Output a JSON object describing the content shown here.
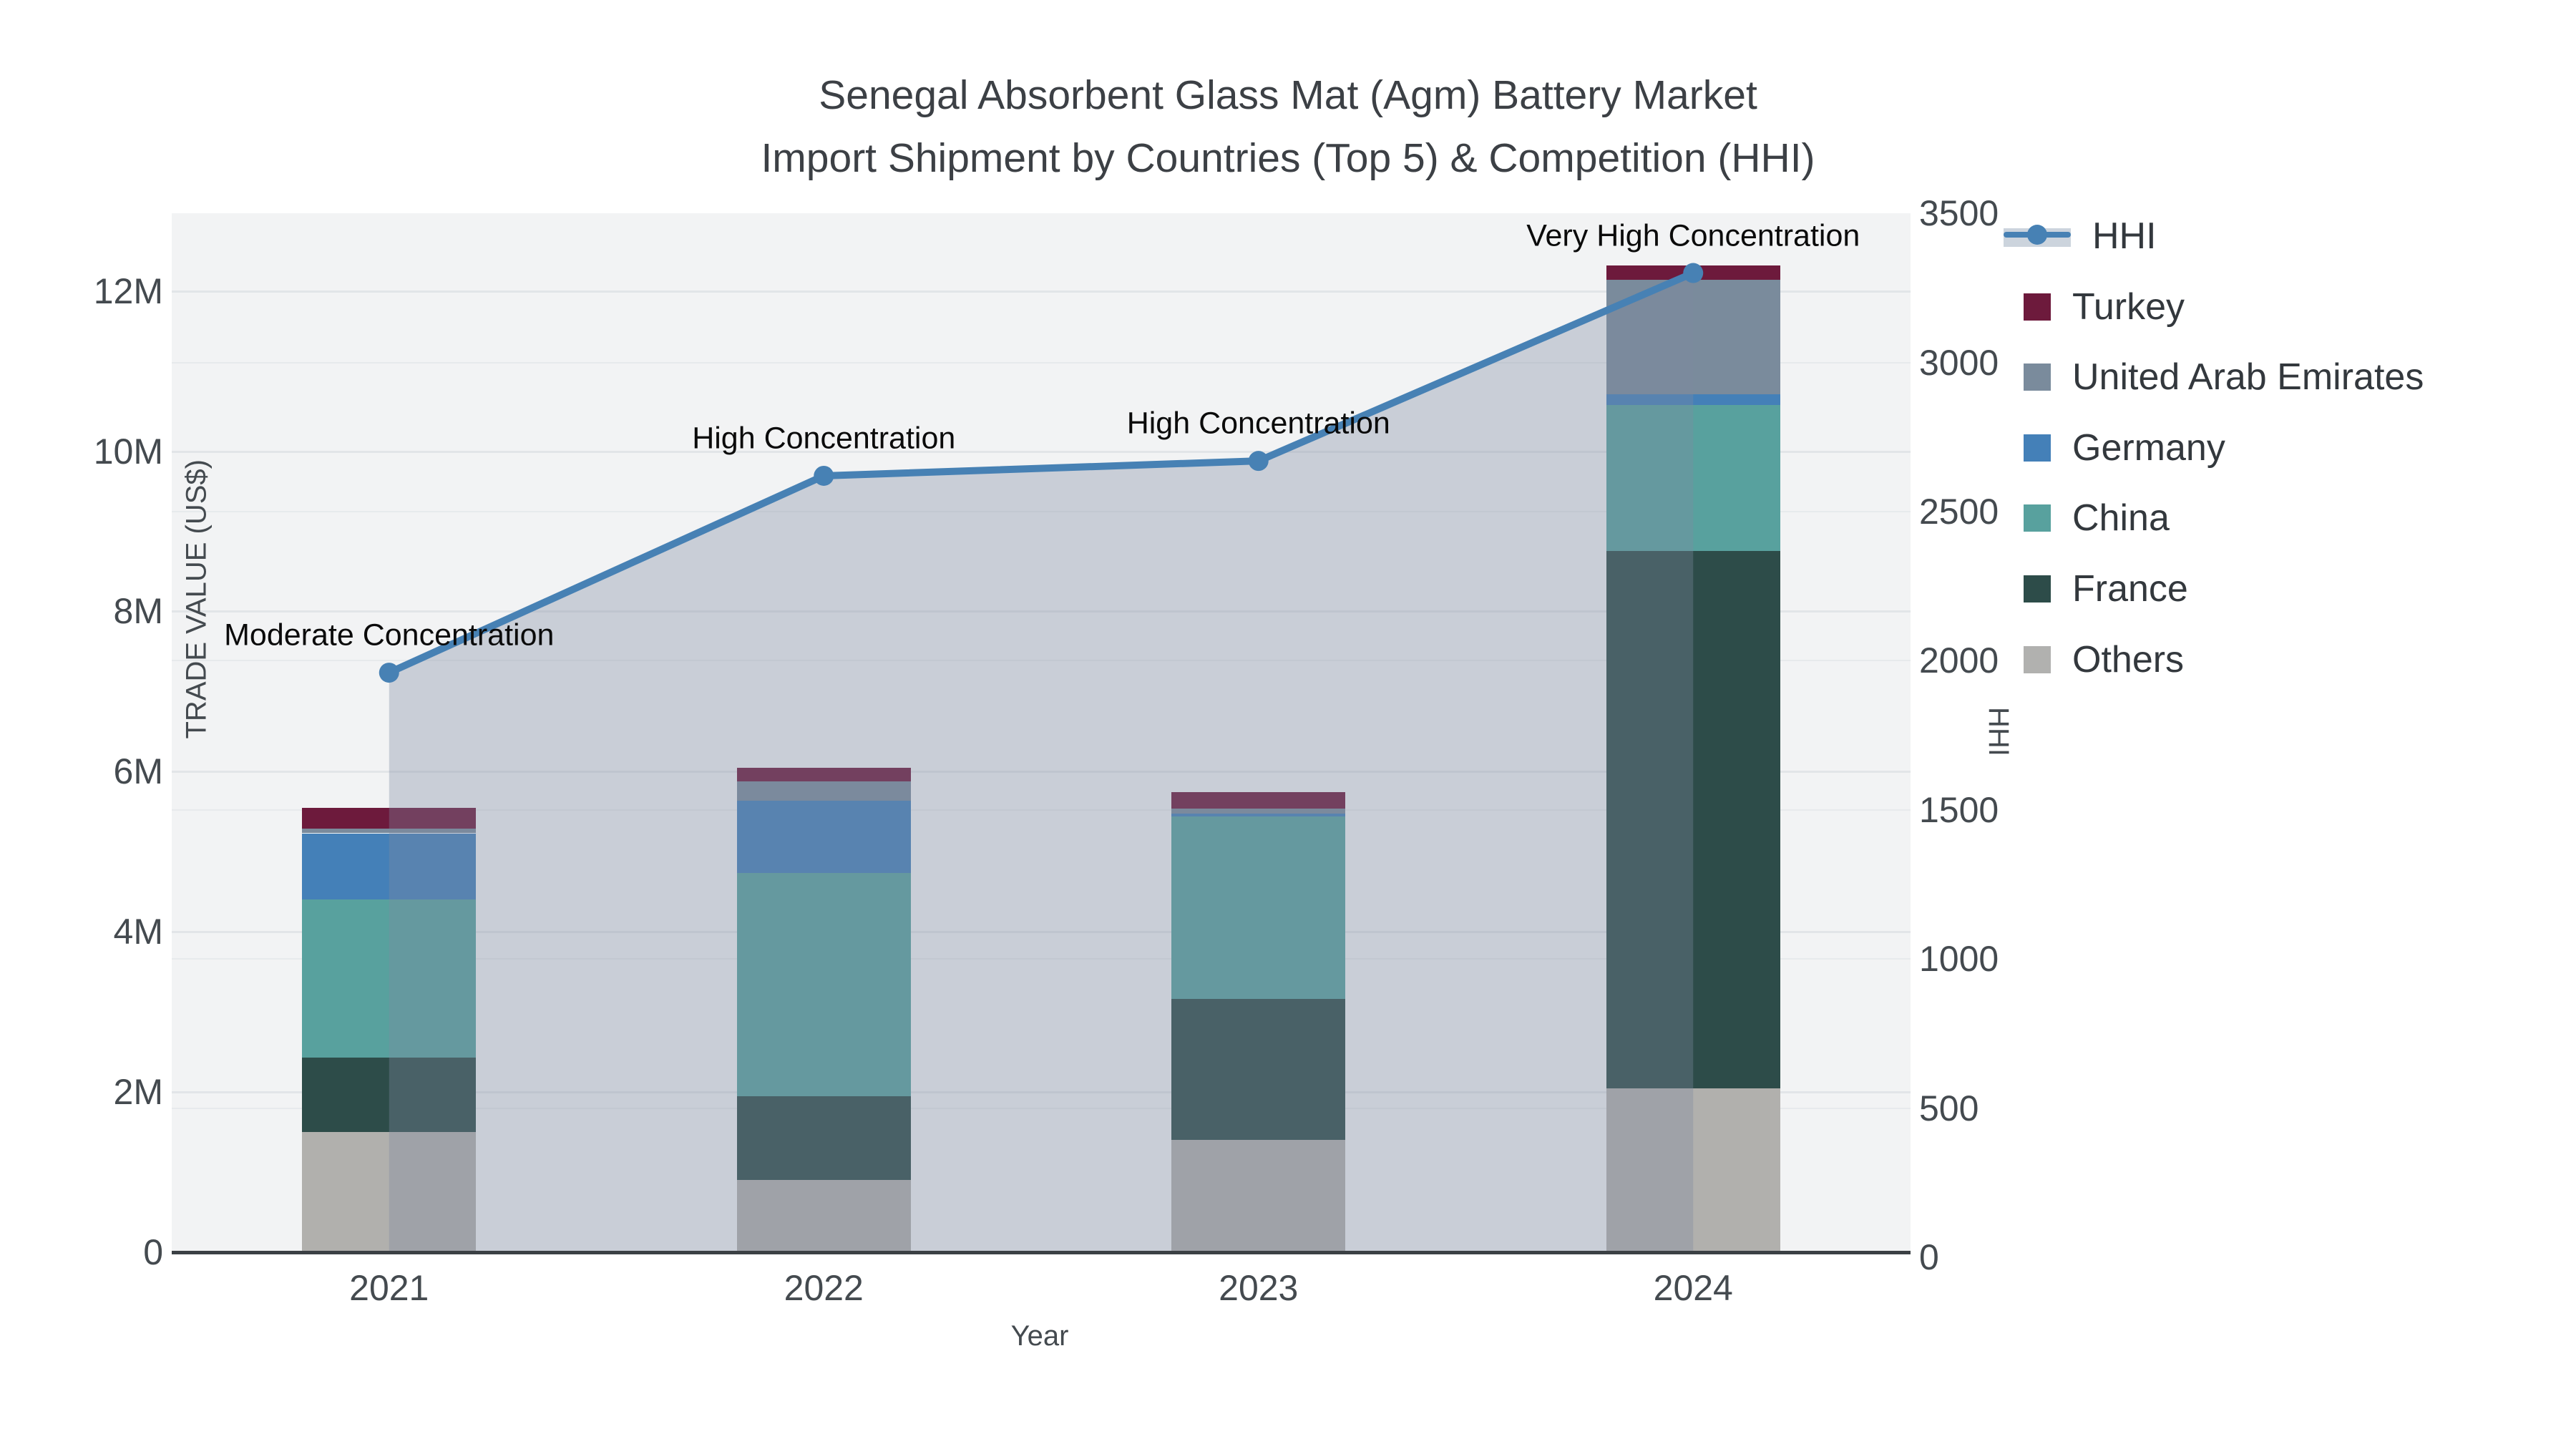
{
  "title": {
    "line1": "Senegal Absorbent Glass Mat (Agm) Battery Market",
    "line2": "Import Shipment by Countries (Top 5) & Competition (HHI)"
  },
  "axes": {
    "x": {
      "title": "Year",
      "ticks": [
        "2021",
        "2022",
        "2023",
        "2024"
      ]
    },
    "y_left": {
      "title": "TRADE VALUE (US$)",
      "ticks": [
        "0",
        "2M",
        "4M",
        "6M",
        "8M",
        "10M",
        "12M"
      ],
      "range_millions": [
        0,
        12.95
      ]
    },
    "y_right": {
      "title": "HHI",
      "ticks": [
        "0",
        "500",
        "1000",
        "1500",
        "2000",
        "2500",
        "3000",
        "3500"
      ],
      "range": [
        0,
        3500
      ]
    }
  },
  "chart_data": {
    "type": "bar",
    "subtype": "stacked-bars-with-hhi-line-and-area",
    "title": "Senegal Absorbent Glass Mat (Agm) Battery Market Import Shipment by Countries (Top 5) & Competition (HHI)",
    "xlabel": "Year",
    "ylabel": "TRADE VALUE (US$)",
    "y2label": "HHI",
    "categories": [
      "2021",
      "2022",
      "2023",
      "2024"
    ],
    "unit": "million US$",
    "grid": "on",
    "legend_position": "right",
    "series": [
      {
        "name": "Others",
        "color": "#b1b0ad",
        "values": [
          1.5,
          0.9,
          1.4,
          2.05
        ]
      },
      {
        "name": "France",
        "color": "#2d4c49",
        "values": [
          0.93,
          1.05,
          1.76,
          6.7
        ]
      },
      {
        "name": "China",
        "color": "#58a19e",
        "values": [
          1.97,
          2.78,
          2.28,
          1.83
        ]
      },
      {
        "name": "Germany",
        "color": "#4480b8",
        "values": [
          0.83,
          0.91,
          0.04,
          0.13
        ]
      },
      {
        "name": "United Arab Emirates",
        "color": "#7a8b9c",
        "values": [
          0.06,
          0.24,
          0.06,
          1.43
        ]
      },
      {
        "name": "Turkey",
        "color": "#6d1a3c",
        "values": [
          0.26,
          0.17,
          0.2,
          0.18
        ]
      }
    ],
    "stack_totals_millions": [
      5.55,
      6.05,
      5.74,
      12.32
    ],
    "line_series": {
      "name": "HHI",
      "color": "#4781b4",
      "area_fill": "rgba(125,137,160,0.35)",
      "values": [
        1960,
        2620,
        2670,
        3300
      ]
    },
    "annotations": [
      {
        "category": "2021",
        "text": "Moderate Concentration"
      },
      {
        "category": "2022",
        "text": "High Concentration"
      },
      {
        "category": "2023",
        "text": "High Concentration"
      },
      {
        "category": "2024",
        "text": "Very High Concentration"
      }
    ]
  },
  "legend": {
    "items": [
      {
        "name": "HHI",
        "type": "line-area",
        "color": "#4781b4",
        "band": "#ccd4dd"
      },
      {
        "name": "Turkey",
        "type": "square",
        "color": "#6d1a3c"
      },
      {
        "name": "United Arab Emirates",
        "type": "square",
        "color": "#7a8b9c"
      },
      {
        "name": "Germany",
        "type": "square",
        "color": "#4480b8"
      },
      {
        "name": "China",
        "type": "square",
        "color": "#58a19e"
      },
      {
        "name": "France",
        "type": "square",
        "color": "#2d4c49"
      },
      {
        "name": "Others",
        "type": "square",
        "color": "#b1b1af"
      }
    ]
  }
}
